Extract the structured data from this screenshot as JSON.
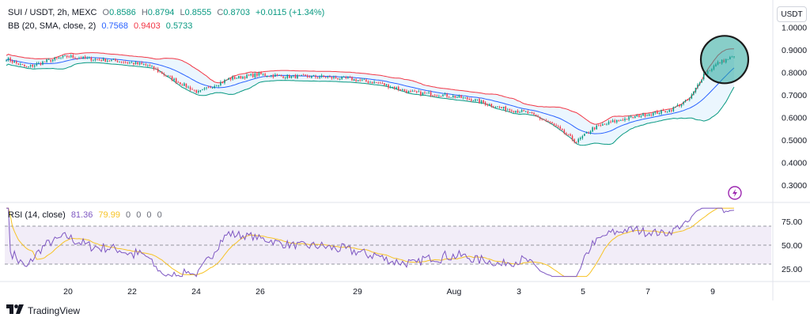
{
  "header": {
    "symbol": "SUI / USDT, 2h, MEXC",
    "ohlc": [
      {
        "label": "O",
        "value": "0.8586"
      },
      {
        "label": "H",
        "value": "0.8794"
      },
      {
        "label": "L",
        "value": "0.8555"
      },
      {
        "label": "C",
        "value": "0.8703"
      }
    ],
    "change": "+0.0115 (+1.34%)",
    "bb_label": "BB (20, SMA, close, 2)",
    "bb_values": [
      "0.7568",
      "0.9403",
      "0.5733"
    ],
    "rsi_label": "RSI (14, close)",
    "rsi_values": [
      "81.36",
      "79.99"
    ],
    "rsi_extra": [
      "0",
      "0",
      "0",
      "0"
    ]
  },
  "currency": "USDT",
  "brand": "TradingView",
  "colors": {
    "up": "#089981",
    "down": "#f23645",
    "bb_basis": "#2962ff",
    "bb_upper": "#f23645",
    "bb_lower": "#089981",
    "bb_fill": "#e3f2fd",
    "rsi": "#7e57c2",
    "rsi_ma": "#f7c325",
    "rsi_band": "#ede7f6",
    "highlight": "#26a69a",
    "lightning": "#9c27b0"
  },
  "icons": [
    "lightning-icon",
    "tradingview-logo"
  ],
  "chart_data": [
    {
      "type": "candlestick",
      "title": "SUI / USDT, 2h, MEXC",
      "x_tick_labels": [
        "20",
        "22",
        "24",
        "26",
        "29",
        "Aug",
        "3",
        "5",
        "7",
        "9"
      ],
      "y_ticks": [
        1.0,
        0.9,
        0.8,
        0.7,
        0.6,
        0.5,
        0.4,
        0.3
      ],
      "y_tick_labels": [
        "1.0000",
        "0.9000",
        "0.8000",
        "0.7000",
        "0.6000",
        "0.5000",
        "0.4000",
        "0.3000"
      ],
      "ylim": [
        0.25,
        1.05
      ],
      "close_keypoints": [
        [
          0,
          0.86
        ],
        [
          10,
          0.82
        ],
        [
          20,
          0.85
        ],
        [
          30,
          0.87
        ],
        [
          40,
          0.86
        ],
        [
          55,
          0.85
        ],
        [
          70,
          0.83
        ],
        [
          82,
          0.77
        ],
        [
          95,
          0.71
        ],
        [
          110,
          0.77
        ],
        [
          125,
          0.79
        ],
        [
          140,
          0.78
        ],
        [
          155,
          0.78
        ],
        [
          170,
          0.77
        ],
        [
          185,
          0.75
        ],
        [
          200,
          0.71
        ],
        [
          215,
          0.7
        ],
        [
          230,
          0.68
        ],
        [
          245,
          0.64
        ],
        [
          258,
          0.62
        ],
        [
          270,
          0.57
        ],
        [
          282,
          0.49
        ],
        [
          290,
          0.55
        ],
        [
          300,
          0.58
        ],
        [
          315,
          0.61
        ],
        [
          328,
          0.63
        ],
        [
          338,
          0.68
        ],
        [
          345,
          0.79
        ],
        [
          352,
          0.84
        ],
        [
          360,
          0.87
        ]
      ],
      "bollinger": {
        "period": 20,
        "mult": 2,
        "last_basis": 0.7568,
        "last_upper": 0.9403,
        "last_lower": 0.5733
      },
      "highlight": {
        "shape": "circle",
        "around": "latest candles",
        "color": "#26a69a"
      }
    },
    {
      "type": "line",
      "title": "RSI (14, close)",
      "y_ticks": [
        75,
        50,
        25
      ],
      "y_tick_labels": [
        "75.00",
        "50.00",
        "25.00"
      ],
      "ylim": [
        15,
        90
      ],
      "band": [
        30,
        70
      ],
      "last_rsi": 81.36,
      "last_ma": 79.99
    }
  ]
}
